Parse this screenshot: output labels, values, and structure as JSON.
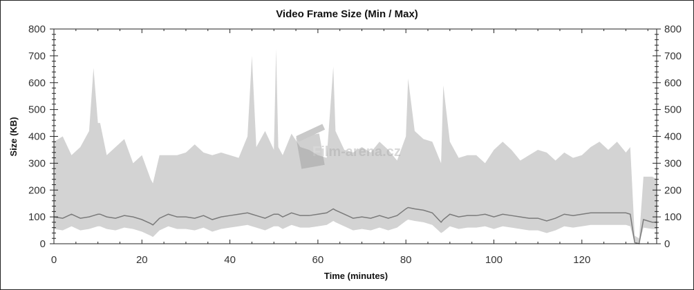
{
  "chart_data": {
    "type": "area",
    "title": "Video Frame Size (Min / Max)",
    "xlabel": "Time (minutes)",
    "ylabel": "Size (KB)",
    "xlim": [
      0,
      137
    ],
    "ylim": [
      0,
      800
    ],
    "x_ticks": [
      "0",
      "20",
      "40",
      "60",
      "80",
      "100",
      "120"
    ],
    "y_ticks": [
      "0",
      "100",
      "200",
      "300",
      "400",
      "500",
      "600",
      "700",
      "800"
    ],
    "right_axis_mirrored": true,
    "grid": false,
    "legend": "none",
    "colors": {
      "max_fill": "#d3d3d3",
      "min_fill": "#ffffff",
      "average_line": "#7a7a7a",
      "axis": "#222222"
    },
    "x": [
      0,
      2,
      4,
      6,
      8,
      9,
      10,
      10.5,
      12,
      14,
      16,
      18,
      20,
      22,
      22.5,
      24,
      26,
      28,
      30,
      32,
      34,
      36,
      38,
      40,
      42,
      44,
      45,
      46,
      48,
      50,
      50.5,
      51,
      52,
      54,
      56,
      58,
      60,
      62,
      63.5,
      64,
      66,
      68,
      70,
      72,
      74,
      76,
      78,
      80,
      80.5,
      82,
      84,
      86,
      88,
      88.5,
      90,
      92,
      94,
      96,
      98,
      100,
      102,
      104,
      106,
      108,
      110,
      112,
      114,
      116,
      118,
      120,
      122,
      124,
      126,
      128,
      130,
      131,
      132,
      133,
      134,
      136,
      137
    ],
    "max": [
      380,
      400,
      330,
      360,
      420,
      655,
      450,
      450,
      330,
      360,
      390,
      300,
      330,
      240,
      225,
      330,
      330,
      330,
      340,
      370,
      340,
      330,
      340,
      330,
      320,
      400,
      700,
      360,
      420,
      350,
      725,
      360,
      330,
      410,
      360,
      350,
      330,
      320,
      660,
      420,
      350,
      340,
      360,
      340,
      380,
      350,
      310,
      400,
      615,
      420,
      390,
      380,
      300,
      590,
      380,
      320,
      330,
      330,
      300,
      350,
      380,
      350,
      310,
      330,
      350,
      340,
      310,
      340,
      320,
      330,
      360,
      380,
      350,
      380,
      340,
      360,
      30,
      20,
      250,
      250,
      240
    ],
    "average": [
      100,
      95,
      110,
      95,
      100,
      105,
      110,
      110,
      100,
      95,
      105,
      100,
      90,
      75,
      70,
      95,
      110,
      100,
      100,
      95,
      105,
      90,
      100,
      105,
      110,
      115,
      110,
      105,
      95,
      110,
      110,
      110,
      100,
      115,
      105,
      105,
      110,
      115,
      130,
      125,
      110,
      95,
      100,
      95,
      105,
      95,
      105,
      130,
      135,
      130,
      125,
      115,
      80,
      90,
      110,
      100,
      105,
      105,
      110,
      100,
      110,
      105,
      100,
      95,
      95,
      85,
      95,
      110,
      105,
      110,
      115,
      115,
      115,
      115,
      115,
      110,
      5,
      0,
      90,
      80,
      80
    ],
    "min": [
      55,
      50,
      65,
      50,
      55,
      60,
      65,
      65,
      55,
      50,
      60,
      55,
      45,
      30,
      25,
      50,
      65,
      55,
      55,
      50,
      60,
      45,
      55,
      60,
      65,
      70,
      65,
      60,
      50,
      65,
      65,
      65,
      55,
      70,
      60,
      60,
      65,
      70,
      85,
      80,
      65,
      50,
      55,
      50,
      60,
      50,
      60,
      85,
      90,
      85,
      80,
      70,
      40,
      45,
      65,
      55,
      60,
      60,
      65,
      55,
      65,
      60,
      55,
      50,
      50,
      40,
      50,
      65,
      60,
      65,
      70,
      70,
      70,
      70,
      70,
      65,
      0,
      0,
      60,
      55,
      55
    ]
  },
  "watermark": "Film-arena.cz"
}
